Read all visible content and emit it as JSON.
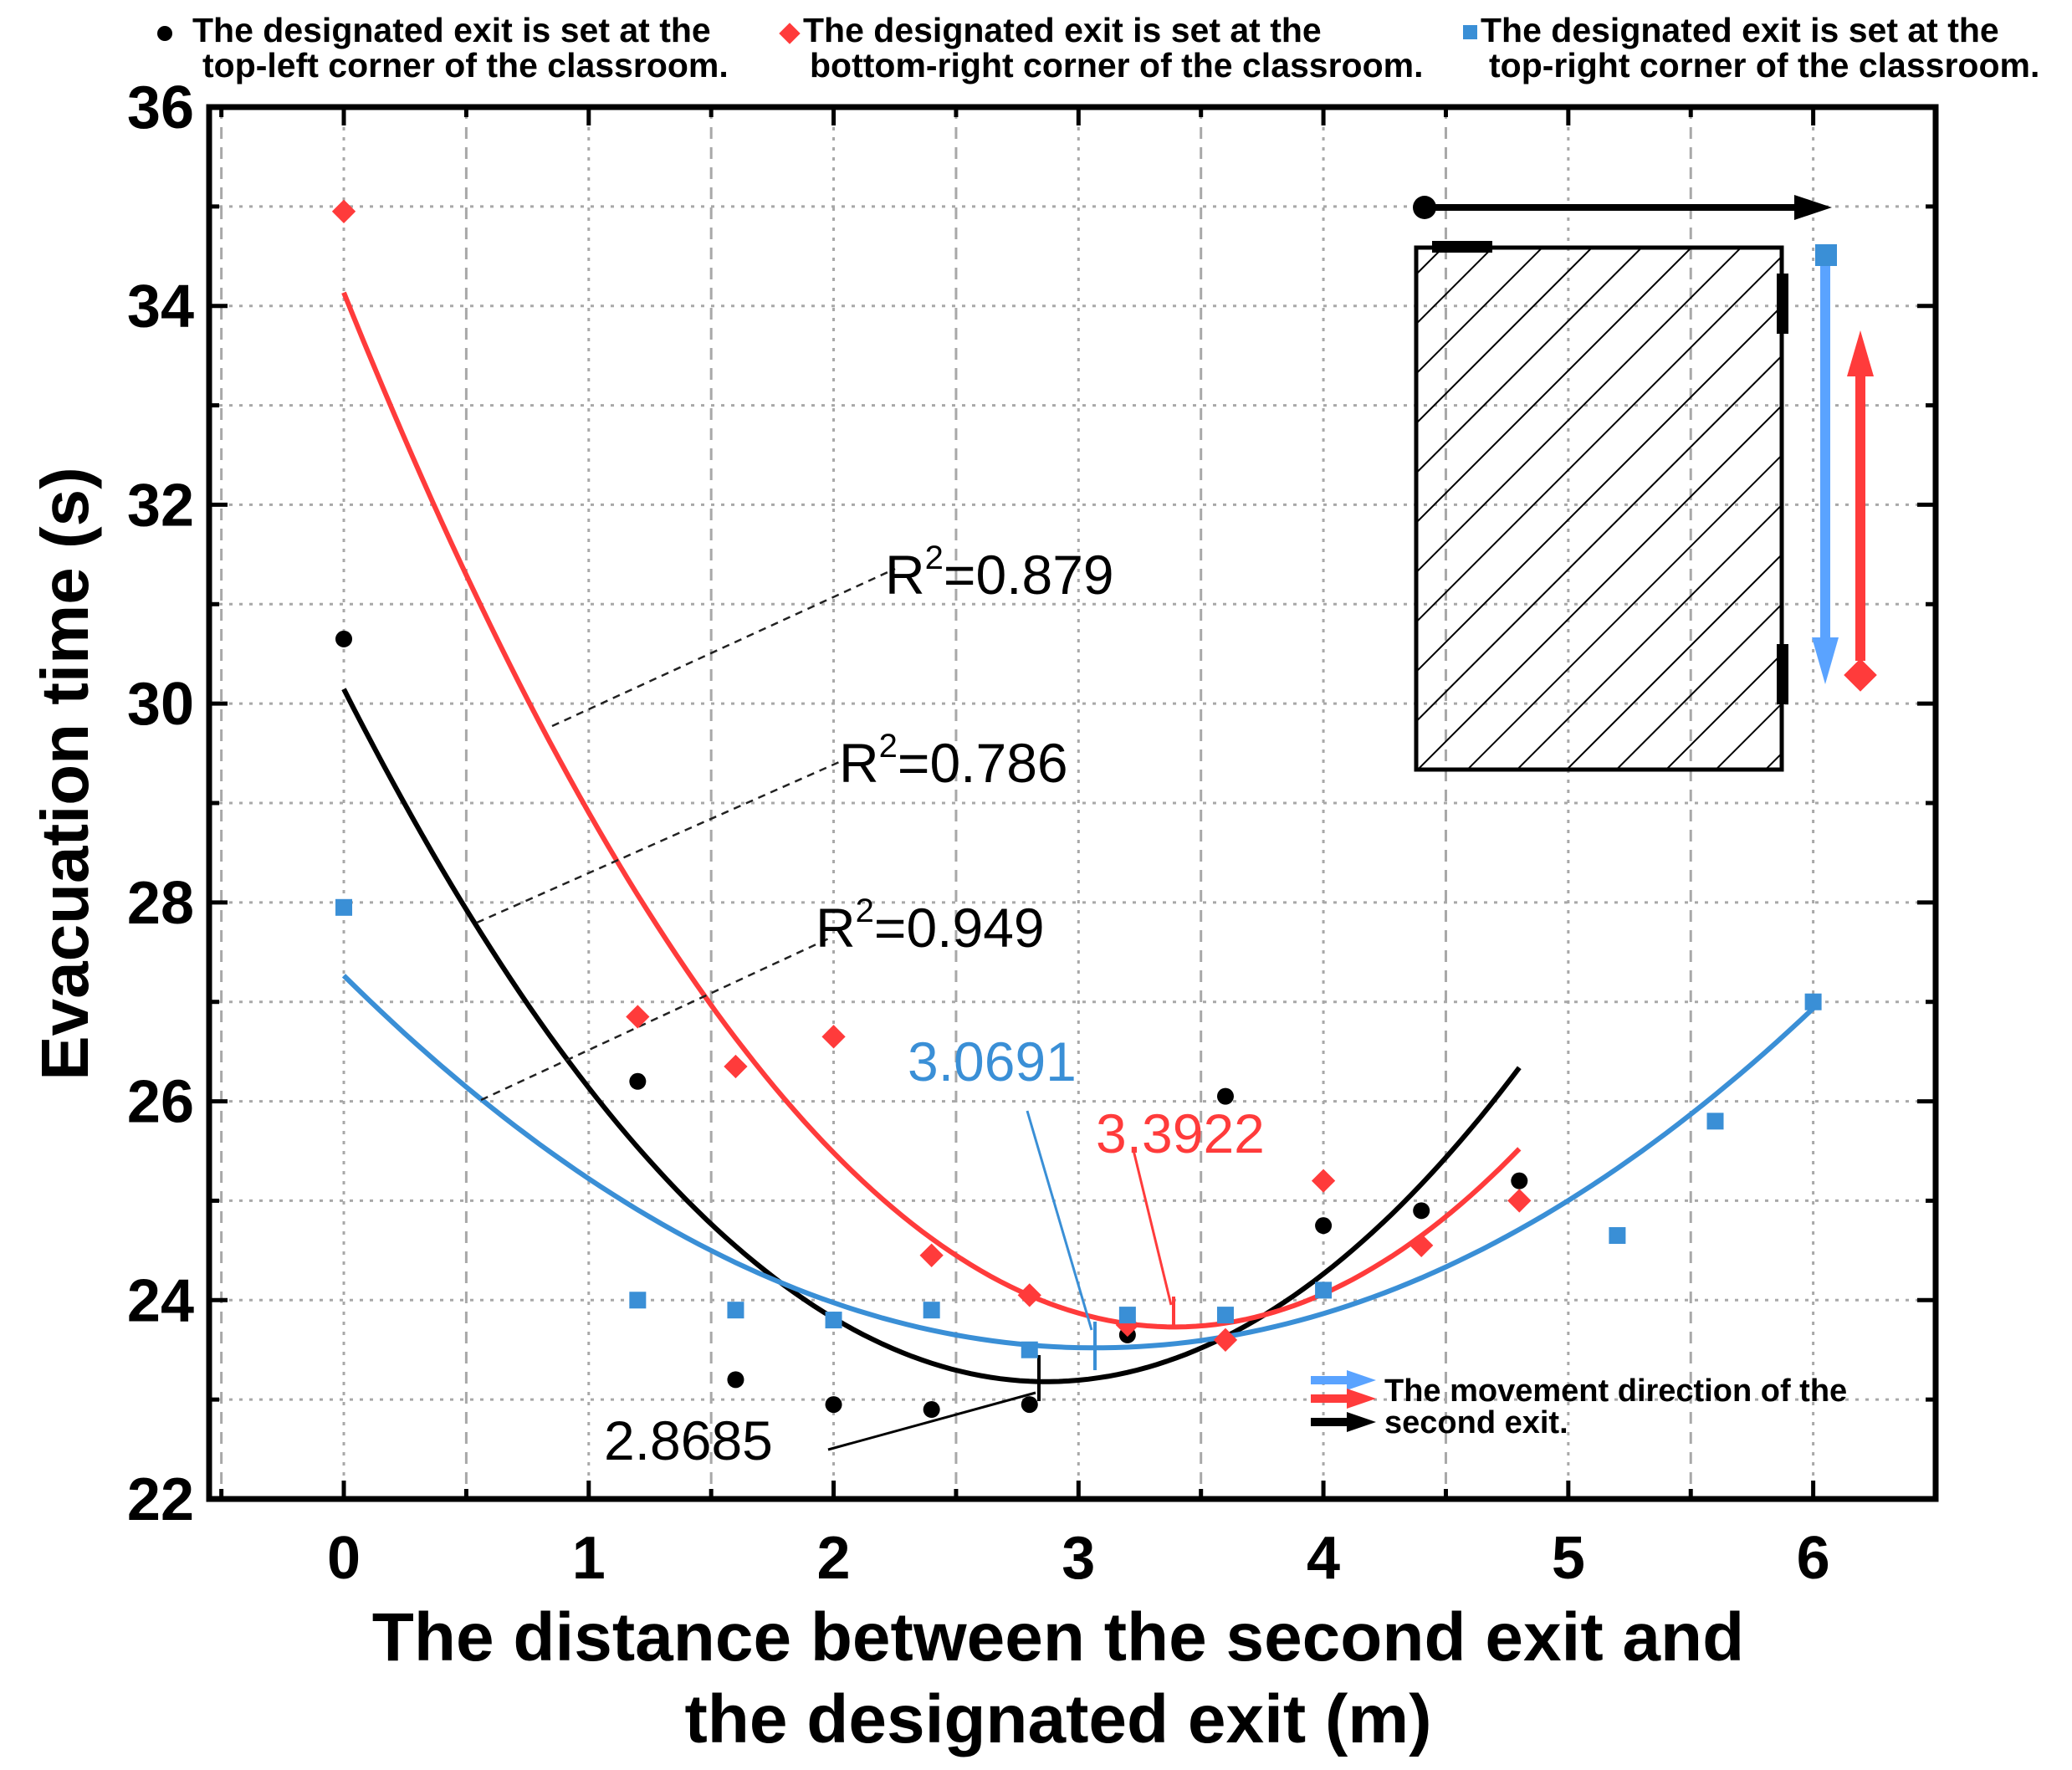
{
  "chart_data": {
    "type": "scatter",
    "xlabel": [
      "The distance between the second exit and",
      "the designated exit (m)"
    ],
    "ylabel": "Evacuation time (s)",
    "xlim": [
      -0.55,
      6.5
    ],
    "ylim": [
      22,
      36
    ],
    "xticks": [
      0,
      1,
      2,
      3,
      4,
      5,
      6
    ],
    "yticks": [
      22,
      24,
      26,
      28,
      30,
      32,
      34,
      36
    ],
    "grid": true,
    "series": [
      {
        "name": "top-left",
        "legend": [
          "The designated exit is set at the",
          "top-left corner of the classroom."
        ],
        "color": "#000000",
        "marker": "circle",
        "points": [
          [
            0,
            30.65
          ],
          [
            1.2,
            26.2
          ],
          [
            1.6,
            23.2
          ],
          [
            2.0,
            22.95
          ],
          [
            2.4,
            22.9
          ],
          [
            2.8,
            22.95
          ],
          [
            3.2,
            23.65
          ],
          [
            3.6,
            26.05
          ],
          [
            4.0,
            24.75
          ],
          [
            4.4,
            24.9
          ],
          [
            4.8,
            25.2
          ]
        ],
        "fit": {
          "a": 0.8466,
          "vertex": 2.8685,
          "min": 23.18,
          "range": [
            0,
            4.8
          ]
        },
        "r2": "0.786"
      },
      {
        "name": "bottom-right",
        "legend": [
          "The designated exit is set at the",
          "bottom-right corner of the classroom."
        ],
        "color": "#ff3b3b",
        "marker": "diamond",
        "points": [
          [
            0,
            34.95
          ],
          [
            1.2,
            26.85
          ],
          [
            1.6,
            26.35
          ],
          [
            2.0,
            26.65
          ],
          [
            2.4,
            24.45
          ],
          [
            2.8,
            24.05
          ],
          [
            3.2,
            23.75
          ],
          [
            3.6,
            23.6
          ],
          [
            4.0,
            25.2
          ],
          [
            4.4,
            24.55
          ],
          [
            4.8,
            25.0
          ]
        ],
        "fit": {
          "a": 0.9042,
          "vertex": 3.3922,
          "min": 23.73,
          "range": [
            0,
            4.8
          ]
        },
        "r2": "0.879"
      },
      {
        "name": "top-right",
        "legend": [
          "The designated exit is set at the",
          "top-right corner of the classroom."
        ],
        "color": "#3a8fd6",
        "marker": "square",
        "points": [
          [
            0,
            27.95
          ],
          [
            1.2,
            24.0
          ],
          [
            1.6,
            23.9
          ],
          [
            2.0,
            23.8
          ],
          [
            2.4,
            23.9
          ],
          [
            2.8,
            23.5
          ],
          [
            3.2,
            23.85
          ],
          [
            3.6,
            23.85
          ],
          [
            4.0,
            24.1
          ],
          [
            5.2,
            24.65
          ],
          [
            5.6,
            25.8
          ],
          [
            6.0,
            27.0
          ]
        ],
        "fit": {
          "a": 0.3975,
          "vertex": 3.0691,
          "min": 23.52,
          "range": [
            0,
            6.0
          ]
        },
        "r2": "0.949"
      }
    ],
    "annotations": {
      "r2_labels": [
        {
          "text_prefix": "R",
          "sup": "2",
          "value": "=0.879"
        },
        {
          "text_prefix": "R",
          "sup": "2",
          "value": "=0.786"
        },
        {
          "text_prefix": "R",
          "sup": "2",
          "value": "=0.949"
        }
      ],
      "vertex_labels": {
        "blue": "3.0691",
        "red": "3.3922",
        "black": "2.8685"
      }
    },
    "inset_legend": [
      "The movement direction of the",
      "second exit."
    ]
  },
  "colors": {
    "black": "#000000",
    "red": "#ff3b3b",
    "blue": "#3a8fd6",
    "grid": "#a8a8a8"
  }
}
